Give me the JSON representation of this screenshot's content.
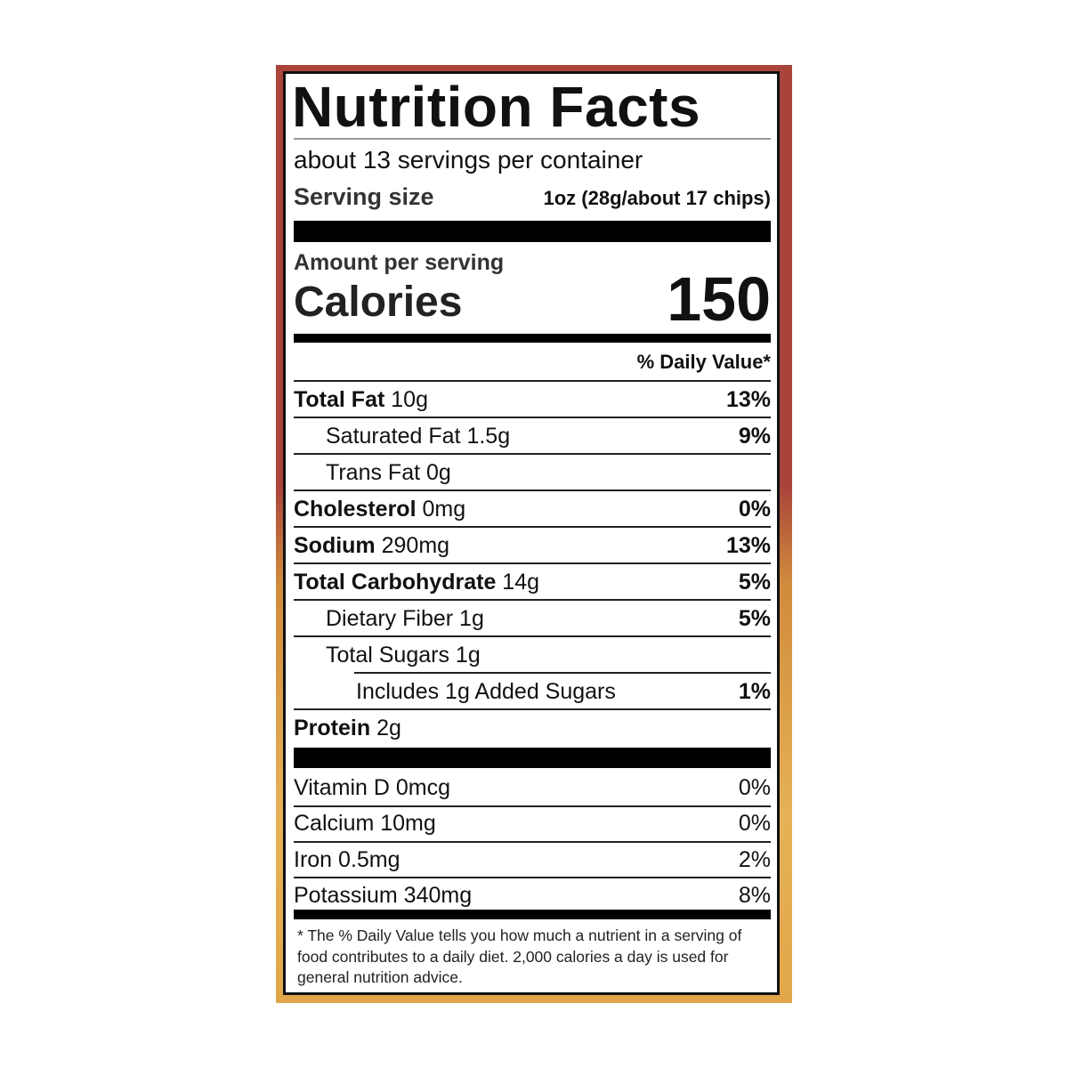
{
  "title": "Nutrition Facts",
  "servings_per_container": "about 13 servings per container",
  "serving_size": {
    "label": "Serving size",
    "value": "1oz (28g/about 17 chips)"
  },
  "amount_per_serving": "Amount per serving",
  "calories": {
    "label": "Calories",
    "value": "150"
  },
  "daily_value_header": "% Daily Value*",
  "nutrients": [
    {
      "name": "Total Fat",
      "amount": "10g",
      "dv": "13%"
    },
    {
      "name": "Saturated Fat",
      "amount": "1.5g",
      "dv": "9%"
    },
    {
      "name": "Trans Fat",
      "amount": "0g",
      "dv": ""
    },
    {
      "name": "Cholesterol",
      "amount": "0mg",
      "dv": "0%"
    },
    {
      "name": "Sodium",
      "amount": "290mg",
      "dv": "13%"
    },
    {
      "name": "Total Carbohydrate",
      "amount": "14g",
      "dv": "5%"
    },
    {
      "name": "Dietary Fiber",
      "amount": "1g",
      "dv": "5%"
    },
    {
      "name": "Total Sugars",
      "amount": "1g",
      "dv": ""
    },
    {
      "name": "Includes 1g Added Sugars",
      "amount": "",
      "dv": "1%"
    },
    {
      "name": "Protein",
      "amount": "2g",
      "dv": ""
    }
  ],
  "vitamins": [
    {
      "name": "Vitamin D",
      "amount": "0mcg",
      "dv": "0%"
    },
    {
      "name": "Calcium",
      "amount": "10mg",
      "dv": "0%"
    },
    {
      "name": "Iron",
      "amount": "0.5mg",
      "dv": "2%"
    },
    {
      "name": "Potassium",
      "amount": "340mg",
      "dv": "8%"
    }
  ],
  "footnote": "* The % Daily Value tells you how much a nutrient in a serving of food contributes to a daily diet. 2,000 calories a day is used for general nutrition advice.",
  "colors": {
    "package_top": "#a9443b",
    "package_bottom": "#e1a64a",
    "ink": "#111111"
  }
}
